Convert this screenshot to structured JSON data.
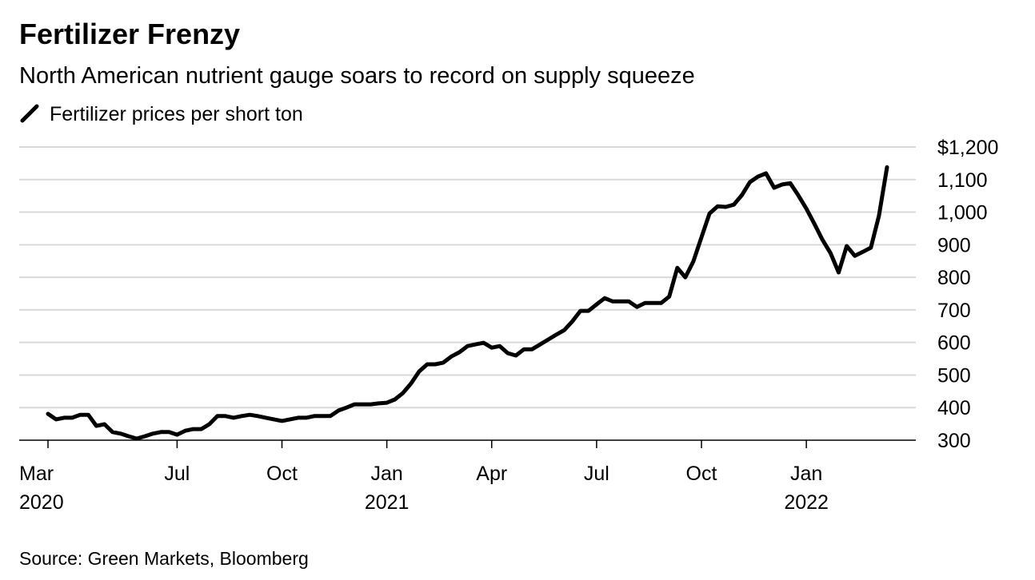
{
  "chart_data": {
    "type": "line",
    "title": "Fertilizer Frenzy",
    "subtitle": "North American nutrient gauge soars to record on supply squeeze",
    "source": "Source: Green Markets, Bloomberg",
    "categories": [
      "Mar\n2020",
      null,
      null,
      null,
      null,
      null,
      null,
      null,
      null,
      null,
      null,
      null,
      null,
      null,
      null,
      null,
      "Jul",
      null,
      null,
      null,
      null,
      null,
      null,
      null,
      null,
      null,
      null,
      null,
      null,
      "Oct",
      null,
      null,
      null,
      null,
      null,
      null,
      null,
      null,
      null,
      null,
      null,
      null,
      "Jan\n2021",
      null,
      null,
      null,
      null,
      null,
      null,
      null,
      null,
      null,
      null,
      null,
      null,
      "Apr",
      null,
      null,
      null,
      null,
      null,
      null,
      null,
      null,
      null,
      null,
      null,
      null,
      "Jul",
      null,
      null,
      null,
      null,
      null,
      null,
      null,
      null,
      null,
      null,
      null,
      null,
      "Oct",
      null,
      null,
      null,
      null,
      null,
      null,
      null,
      null,
      null,
      null,
      null,
      null,
      "Jan\n2022",
      null,
      null,
      null,
      null,
      null,
      null,
      null,
      null,
      null,
      null
    ],
    "series": [
      {
        "name": "Fertilizer prices per short ton",
        "color": "#000000",
        "values": [
          381,
          364,
          369,
          369,
          378,
          378,
          344,
          349,
          325,
          320,
          312,
          305,
          312,
          320,
          325,
          325,
          317,
          329,
          334,
          334,
          349,
          374,
          374,
          369,
          374,
          378,
          374,
          369,
          364,
          359,
          364,
          369,
          369,
          374,
          374,
          374,
          391,
          400,
          410,
          410,
          410,
          413,
          415,
          425,
          445,
          474,
          511,
          533,
          533,
          538,
          557,
          570,
          589,
          594,
          599,
          584,
          589,
          567,
          560,
          579,
          579,
          594,
          609,
          624,
          638,
          665,
          697,
          697,
          717,
          736,
          726,
          726,
          726,
          709,
          721,
          721,
          721,
          741,
          829,
          800,
          849,
          923,
          996,
          1018,
          1016,
          1023,
          1052,
          1092,
          1109,
          1119,
          1075,
          1085,
          1089,
          1052,
          1011,
          964,
          915,
          874,
          815,
          896,
          866,
          878,
          891,
          989,
          1138
        ]
      }
    ],
    "ylim": [
      300,
      1200
    ],
    "yticks": [
      300,
      400,
      500,
      600,
      700,
      800,
      900,
      {
        "value": 1000,
        "label": "1,000"
      },
      {
        "value": 1100,
        "label": "1,100"
      },
      {
        "value": 1200,
        "label": "$1,200"
      }
    ],
    "grid": true
  }
}
